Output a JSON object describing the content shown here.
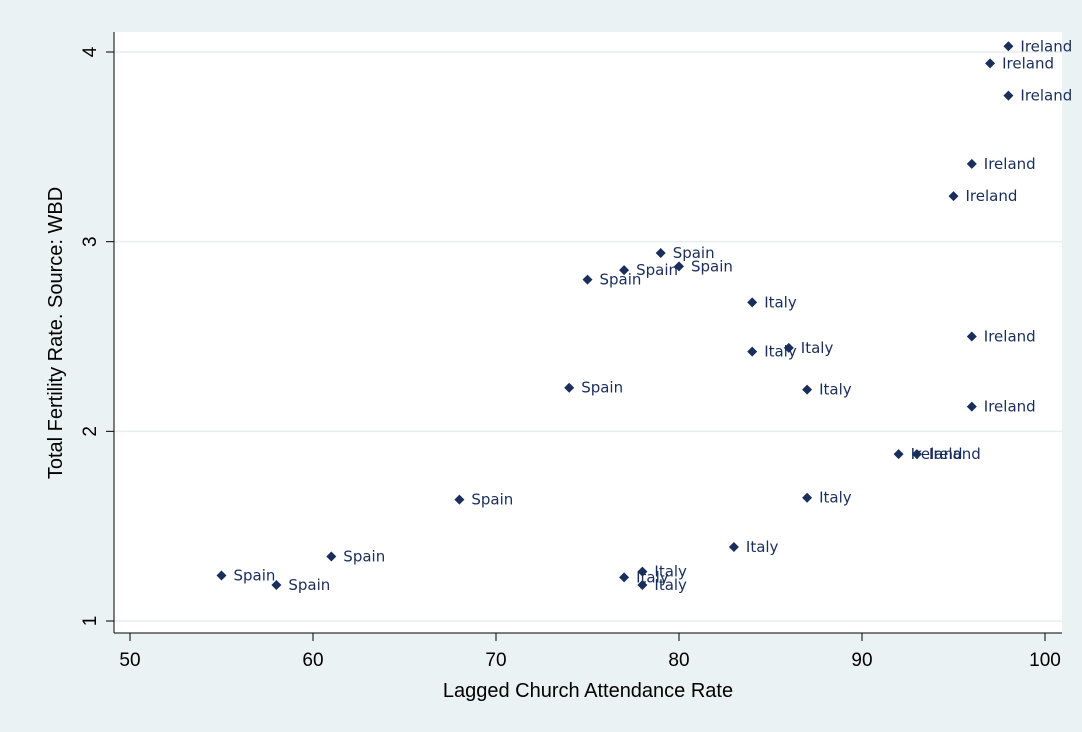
{
  "chart_data": {
    "type": "scatter",
    "xlabel": "Lagged Church Attendance Rate",
    "ylabel": "Total Fertility Rate. Source: WBD",
    "xlim": [
      49,
      101
    ],
    "ylim": [
      0.94,
      4.12
    ],
    "x_ticks": [
      50,
      60,
      70,
      80,
      90,
      100
    ],
    "y_ticks": [
      1,
      2,
      3,
      4
    ],
    "grid": "horizontal",
    "marker_color": "#1a2e5c",
    "points": [
      {
        "x": 98,
        "y": 4.03,
        "label": "Ireland"
      },
      {
        "x": 97,
        "y": 3.94,
        "label": "Ireland"
      },
      {
        "x": 98,
        "y": 3.77,
        "label": "Ireland"
      },
      {
        "x": 96,
        "y": 3.41,
        "label": "Ireland"
      },
      {
        "x": 95,
        "y": 3.24,
        "label": "Ireland"
      },
      {
        "x": 96,
        "y": 2.5,
        "label": "Ireland"
      },
      {
        "x": 96,
        "y": 2.13,
        "label": "Ireland"
      },
      {
        "x": 92,
        "y": 1.88,
        "label": "Ireland"
      },
      {
        "x": 93,
        "y": 1.88,
        "label": "Ireland"
      },
      {
        "x": 79,
        "y": 2.94,
        "label": "Spain"
      },
      {
        "x": 77,
        "y": 2.85,
        "label": "Spain"
      },
      {
        "x": 80,
        "y": 2.87,
        "label": "Spain"
      },
      {
        "x": 75,
        "y": 2.8,
        "label": "Spain"
      },
      {
        "x": 74,
        "y": 2.23,
        "label": "Spain"
      },
      {
        "x": 68,
        "y": 1.64,
        "label": "Spain"
      },
      {
        "x": 61,
        "y": 1.34,
        "label": "Spain"
      },
      {
        "x": 55,
        "y": 1.24,
        "label": "Spain"
      },
      {
        "x": 58,
        "y": 1.19,
        "label": "Spain"
      },
      {
        "x": 84,
        "y": 2.68,
        "label": "Italy"
      },
      {
        "x": 84,
        "y": 2.42,
        "label": "Italy"
      },
      {
        "x": 86,
        "y": 2.44,
        "label": "Italy"
      },
      {
        "x": 87,
        "y": 2.22,
        "label": "Italy"
      },
      {
        "x": 87,
        "y": 1.65,
        "label": "Italy"
      },
      {
        "x": 83,
        "y": 1.39,
        "label": "Italy"
      },
      {
        "x": 78,
        "y": 1.26,
        "label": "Italy"
      },
      {
        "x": 77,
        "y": 1.23,
        "label": "Italy"
      },
      {
        "x": 78,
        "y": 1.19,
        "label": "Italy"
      }
    ]
  }
}
